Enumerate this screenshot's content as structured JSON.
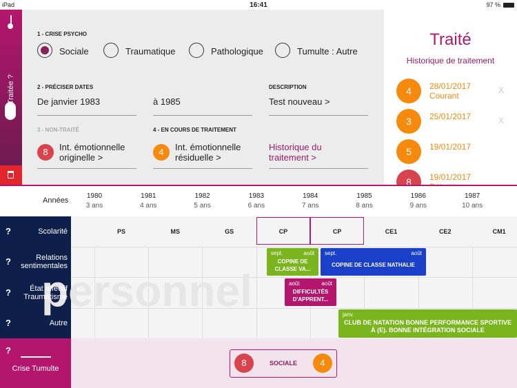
{
  "status_bar": {
    "device": "iPad",
    "time": "16:41",
    "battery": "97 %"
  },
  "sidebar": {
    "label": "5- Traitée ?"
  },
  "form": {
    "crise": {
      "title": "1 - CRISE PSYCHO",
      "options": [
        "Sociale",
        "Traumatique",
        "Pathologique",
        "Tumulte : Autre"
      ],
      "selected": 0
    },
    "dates": {
      "title": "2 - PRÉCISER DATES",
      "from": "De janvier 1983",
      "to": "à 1985"
    },
    "description": {
      "title": "DESCRIPTION",
      "value": "Test nouveau >"
    },
    "non_traite": {
      "title": "3 - NON-TRAITÉ",
      "badge": "8",
      "text": "Int. émotionnelle originelle >"
    },
    "en_cours": {
      "title": "4 - EN COURS DE TRAITEMENT",
      "badge": "4",
      "text": "Int. émotionnelle résiduelle >"
    },
    "history_link": "Historique du traitement >"
  },
  "history": {
    "title": "Traité",
    "subtitle": "Historique de traitement",
    "entries": [
      {
        "badge": "4",
        "date": "28/01/2017",
        "note": "Courant",
        "close": "X",
        "color": "#f7890c"
      },
      {
        "badge": "3",
        "date": "25/01/2017",
        "close": "X",
        "color": "#f7890c"
      },
      {
        "badge": "5",
        "date": "19/01/2017",
        "color": "#f7890c"
      },
      {
        "badge": "8",
        "date": "19/01/2017",
        "note": "Débuté",
        "color": "#d9434e"
      }
    ]
  },
  "timeline": {
    "years_label": "Années",
    "years": [
      {
        "year": "1980",
        "age": "3 ans"
      },
      {
        "year": "1981",
        "age": "4 ans"
      },
      {
        "year": "1982",
        "age": "5 ans"
      },
      {
        "year": "1983",
        "age": "6 ans"
      },
      {
        "year": "1984",
        "age": "7 ans"
      },
      {
        "year": "1985",
        "age": "8 ans"
      },
      {
        "year": "1986",
        "age": "9 ans"
      },
      {
        "year": "1987",
        "age": "10 ans"
      }
    ],
    "help": "?",
    "watermark": "personnel",
    "rows": [
      "Scolarité",
      "Relations sentimentales",
      "État affectif Traumatisme",
      "Autre",
      "Crise Tumulte"
    ],
    "school": [
      "PS",
      "MS",
      "GS",
      "CP",
      "CP",
      "CE1",
      "CE2",
      "CM1"
    ],
    "events": [
      {
        "row": 1,
        "start": "sept.",
        "end": "août",
        "title": "COPINE DE CLASSE VA...",
        "color": "#7ab51d"
      },
      {
        "row": 1,
        "start": "sept.",
        "end": "août",
        "title": "COPINE DE CLASSE NATHALIE",
        "color": "#1a3fc8"
      },
      {
        "row": 2,
        "start": "août",
        "end": "août",
        "title": "DIFFICULTÉS D'APPRENT...",
        "color": "#b5166d"
      },
      {
        "row": 3,
        "start": "janv.",
        "title": "CLUB DE NATATION BONNE PERFORMANCE SPORTIVE À (E). BONNE INTÉGRATION SOCIALE",
        "color": "#7ab51d"
      }
    ],
    "crise": {
      "badge_left": "8",
      "label": "SOCIALE",
      "badge_right": "4"
    }
  }
}
